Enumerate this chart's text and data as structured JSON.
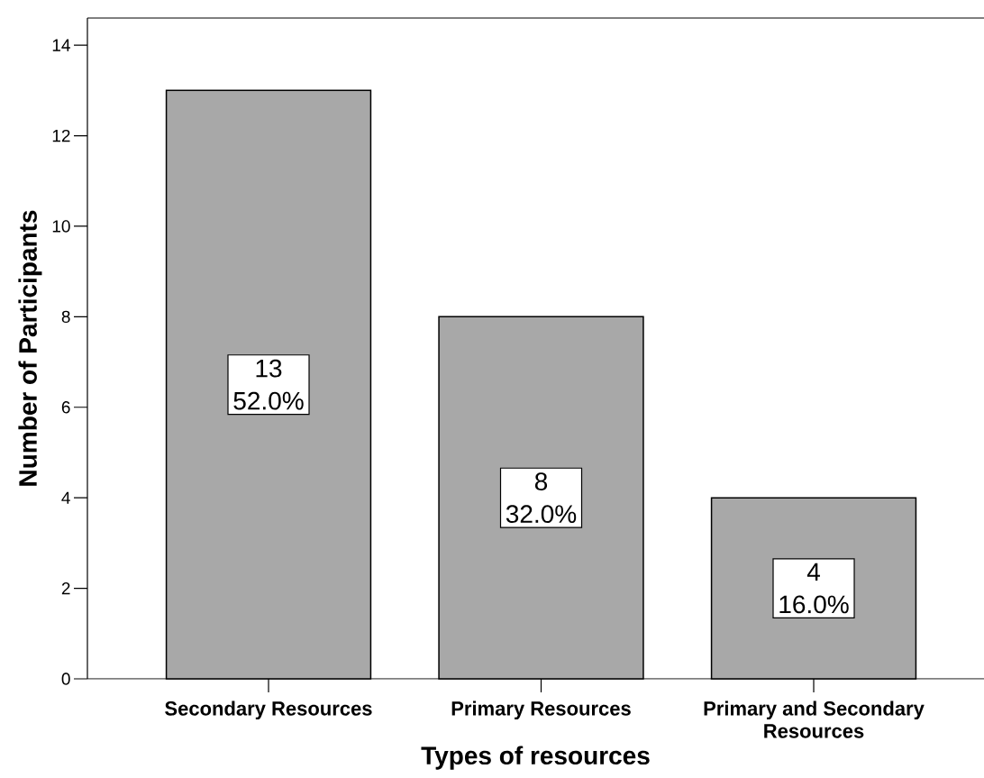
{
  "chart_data": {
    "type": "bar",
    "xlabel": "Types of resources",
    "ylabel": "Number of Participants",
    "categories": [
      "Secondary Resources",
      "Primary Resources",
      "Primary and Secondary Resources"
    ],
    "values": [
      13,
      8,
      4
    ],
    "color": "#a8a8a8",
    "value_labels": [
      "13 52.0%",
      "8 32.0%",
      "4 16.0%"
    ],
    "ylim": [
      0,
      14.6
    ],
    "yticks": [
      0,
      2,
      4,
      6,
      8,
      10,
      12,
      14
    ]
  }
}
